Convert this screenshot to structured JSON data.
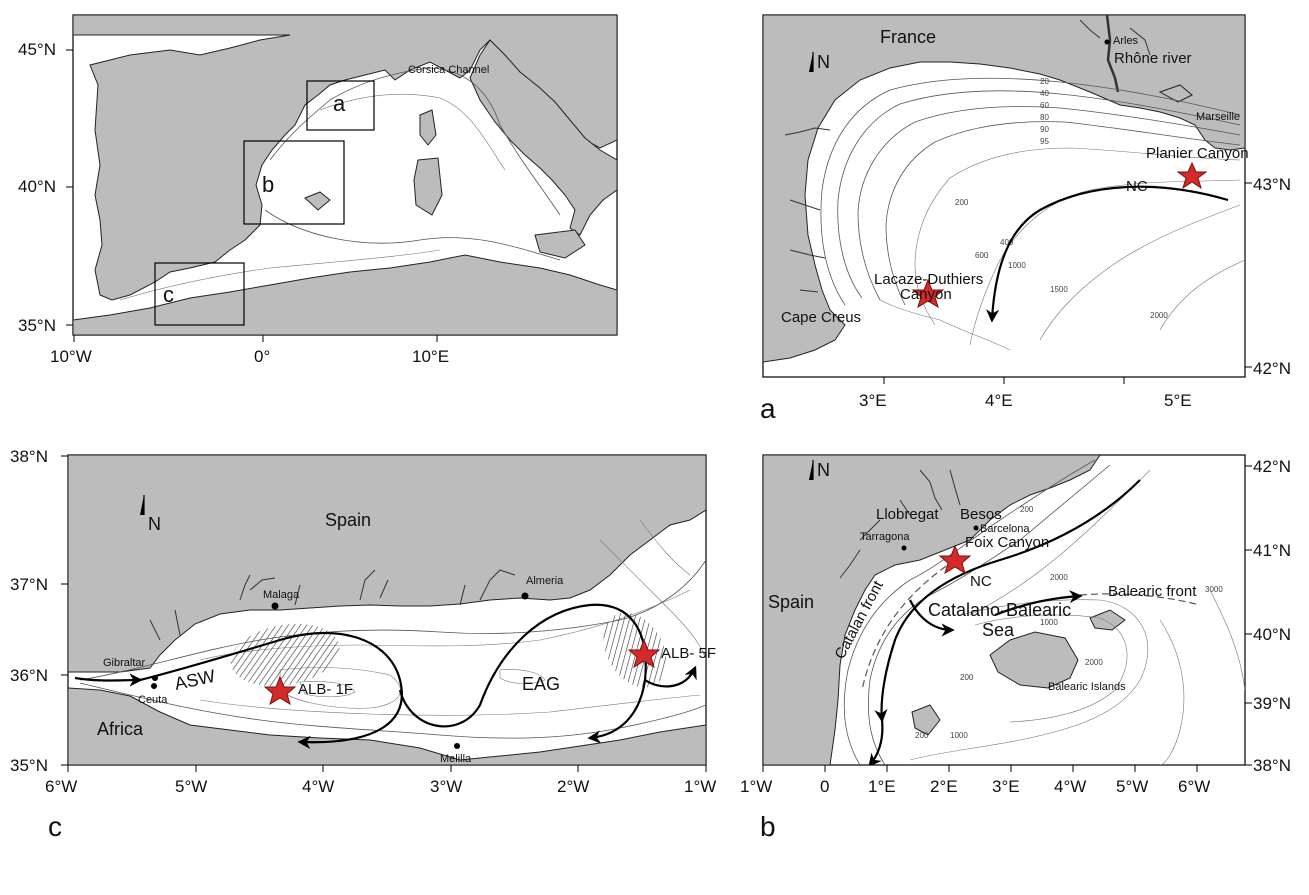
{
  "overview": {
    "lat_labels": [
      "45°N",
      "40°N",
      "35°N"
    ],
    "lon_labels": [
      "10°W",
      "0°",
      "10°E"
    ],
    "box_letters": [
      "a",
      "b",
      "c"
    ],
    "corsica_channel": "Corsica Channel"
  },
  "panel_a": {
    "letter": "a",
    "north": "N",
    "lat_labels": [
      "43°N",
      "42°N"
    ],
    "lon_labels": [
      "3°E",
      "4°E",
      "5°E"
    ],
    "places": {
      "france": "France",
      "arles": "Arles",
      "rhone": "Rhône river",
      "marseille": "Marseille",
      "planier": "Planier Canyon",
      "nc": "NC",
      "lacaze": "Lacaze-Duthiers",
      "canyon": "Canyon",
      "cape_creus": "Cape Creus"
    },
    "isobaths": [
      "20",
      "40",
      "60",
      "80",
      "90",
      "95",
      "200",
      "400",
      "600",
      "1000",
      "1500",
      "2000"
    ]
  },
  "panel_c": {
    "letter": "c",
    "north": "N",
    "lat_labels": [
      "38°N",
      "37°N",
      "36°N",
      "35°N"
    ],
    "lon_labels": [
      "6°W",
      "5°W",
      "4°W",
      "3°W",
      "2°W",
      "1°W"
    ],
    "places": {
      "spain": "Spain",
      "africa": "Africa",
      "malaga": "Malaga",
      "almeria": "Almeria",
      "gibraltar": "Gibraltar",
      "ceuta": "Ceuta",
      "melilla": "Melilla",
      "asw": "ASW",
      "eag": "EAG",
      "alb1f": "ALB- 1F",
      "alb5f": "ALB- 5F"
    }
  },
  "panel_b": {
    "letter": "b",
    "north": "N",
    "lat_labels": [
      "42°N",
      "41°N",
      "40°N",
      "39°N",
      "38°N"
    ],
    "lon_labels": [
      "1°W",
      "0",
      "1°E",
      "2°E",
      "3°E",
      "4°W",
      "5°W",
      "6°W"
    ],
    "places": {
      "spain": "Spain",
      "llobregat": "Llobregat",
      "besos": "Besos",
      "barcelona": "Barcelona",
      "tarragona": "Tarragona",
      "foix": "Foix Canyon",
      "nc": "NC",
      "catalano": "Catalano-Balearic",
      "sea": "Sea",
      "catalan_front": "Catalan front",
      "balearic_front": "Balearic front",
      "balearic_islands": "Balearic Islands"
    },
    "isobaths": [
      "200",
      "1000",
      "2000",
      "3000"
    ]
  },
  "colors": {
    "land": "#bcbcbc",
    "sea": "#ffffff",
    "star": "#d42a2a"
  }
}
